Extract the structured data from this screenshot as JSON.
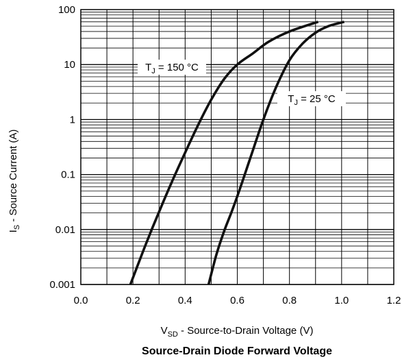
{
  "chart_data": {
    "type": "line",
    "title": "Source-Drain Diode Forward Voltage",
    "xlabel": {
      "main": "V",
      "sub": "SD",
      "rest": " - Source-to-Drain Voltage (V)"
    },
    "ylabel": {
      "main": "I",
      "sub": "S",
      "rest": " - Source Current (A)"
    },
    "xlim": [
      0.0,
      1.2
    ],
    "ylim": [
      0.001,
      100
    ],
    "yscale": "log",
    "grid": true,
    "x_ticks": [
      "0.0",
      "0.2",
      "0.4",
      "0.6",
      "0.8",
      "1.0",
      "1.2"
    ],
    "y_ticks": [
      "0.001",
      "0.01",
      "0.1",
      "1",
      "10",
      "100"
    ],
    "series": [
      {
        "name": {
          "main": "T",
          "sub": "J",
          "rest": " = 150 °C"
        },
        "x": [
          0.19,
          0.25,
          0.3,
          0.35,
          0.4,
          0.45,
          0.5,
          0.55,
          0.6,
          0.66,
          0.72,
          0.8,
          0.91
        ],
        "y": [
          0.001,
          0.0055,
          0.021,
          0.075,
          0.25,
          0.8,
          2.3,
          5.5,
          10,
          16,
          26,
          40,
          60
        ]
      },
      {
        "name": {
          "main": "T",
          "sub": "J",
          "rest": " = 25 °C"
        },
        "x": [
          0.49,
          0.52,
          0.55,
          0.58,
          0.61,
          0.65,
          0.7,
          0.75,
          0.8,
          0.85,
          0.9,
          0.95,
          1.01
        ],
        "y": [
          0.001,
          0.0035,
          0.0095,
          0.022,
          0.055,
          0.2,
          1.0,
          4.0,
          12,
          24,
          38,
          50,
          60
        ]
      }
    ]
  }
}
